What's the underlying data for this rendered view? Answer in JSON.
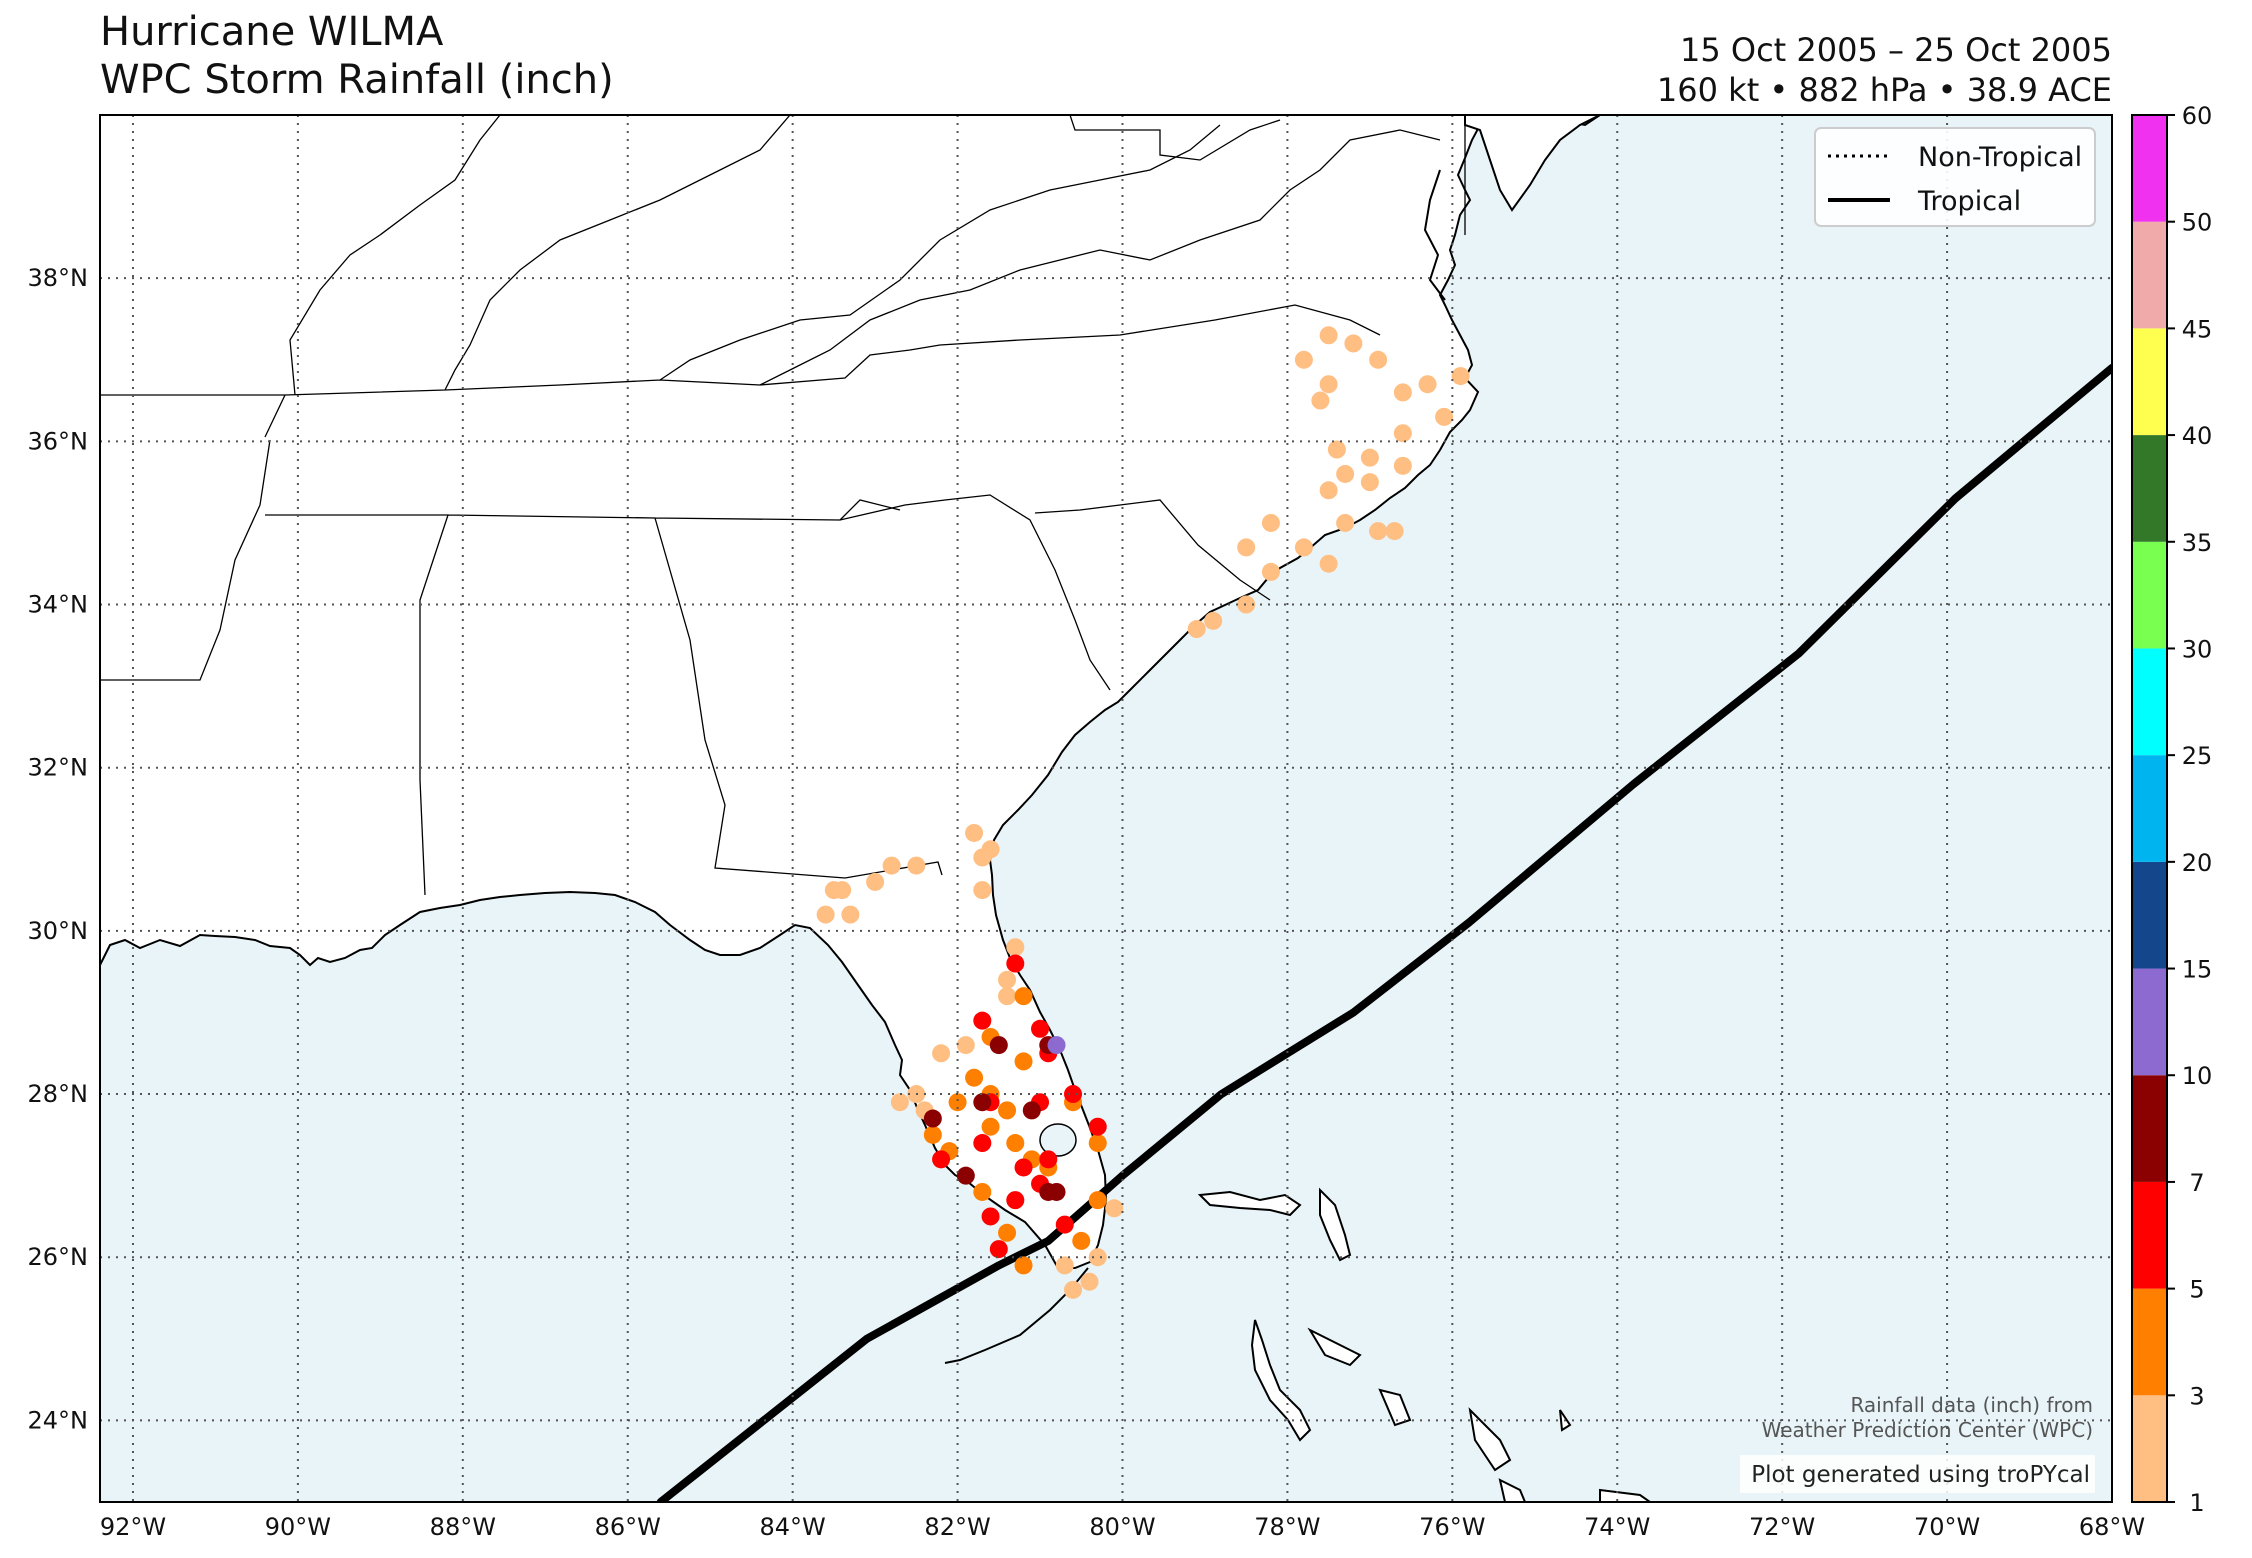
{
  "header": {
    "title_line1": "Hurricane WILMA",
    "title_line2": "WPC Storm Rainfall (inch)",
    "dates": "15 Oct 2005 – 25 Oct 2005",
    "stats": "160 kt • 882 hPa • 38.9 ACE"
  },
  "legend": {
    "non_tropical": "Non-Tropical",
    "tropical": "Tropical"
  },
  "credits": {
    "line1": "Rainfall data (inch) from",
    "line2": "Weather Prediction Center (WPC)",
    "line3": "Plot generated using troPYcal"
  },
  "colors": {
    "ocean": "#e8f4f8",
    "land": "#ffffff",
    "track": "#000000"
  },
  "axes": {
    "lon_labels": [
      "92°W",
      "90°W",
      "88°W",
      "86°W",
      "84°W",
      "82°W",
      "80°W",
      "78°W",
      "76°W",
      "74°W",
      "72°W",
      "70°W",
      "68°W"
    ],
    "lat_labels": [
      "38°N",
      "36°N",
      "34°N",
      "32°N",
      "30°N",
      "28°N",
      "26°N",
      "24°N"
    ]
  },
  "colorbar": {
    "labels": [
      "1",
      "3",
      "5",
      "7",
      "10",
      "15",
      "20",
      "25",
      "30",
      "35",
      "40",
      "45",
      "50",
      "60"
    ],
    "colors": [
      "#ffbe82",
      "#ff7f00",
      "#ff0000",
      "#8b0000",
      "#8c6ad0",
      "#14468c",
      "#00b4f0",
      "#00ffff",
      "#78ff50",
      "#327828",
      "#ffff50",
      "#f0aaaa",
      "#f032f0"
    ]
  },
  "chart_data": {
    "type": "scatter",
    "x_range_lon": [
      -92.4,
      -68
    ],
    "y_range_lat": [
      23,
      40
    ],
    "track": [
      {
        "lon": -85.6,
        "lat": 23.0
      },
      {
        "lon": -83.1,
        "lat": 25.0
      },
      {
        "lon": -81.5,
        "lat": 25.9
      },
      {
        "lon": -80.9,
        "lat": 26.2
      },
      {
        "lon": -80.0,
        "lat": 27.0
      },
      {
        "lon": -78.8,
        "lat": 28.0
      },
      {
        "lon": -77.2,
        "lat": 29.0
      },
      {
        "lon": -75.8,
        "lat": 30.1
      },
      {
        "lon": -73.8,
        "lat": 31.8
      },
      {
        "lon": -71.8,
        "lat": 33.4
      },
      {
        "lon": -69.9,
        "lat": 35.3
      },
      {
        "lon": -68.0,
        "lat": 36.9
      }
    ],
    "rainfall_points": [
      {
        "lon": -77.5,
        "lat": 37.3,
        "in": 2
      },
      {
        "lon": -77.2,
        "lat": 37.2,
        "in": 2
      },
      {
        "lon": -77.8,
        "lat": 37.0,
        "in": 2
      },
      {
        "lon": -76.9,
        "lat": 37.0,
        "in": 2
      },
      {
        "lon": -77.5,
        "lat": 36.7,
        "in": 2
      },
      {
        "lon": -76.6,
        "lat": 36.6,
        "in": 2
      },
      {
        "lon": -76.3,
        "lat": 36.7,
        "in": 2
      },
      {
        "lon": -75.9,
        "lat": 36.8,
        "in": 2
      },
      {
        "lon": -77.6,
        "lat": 36.5,
        "in": 2
      },
      {
        "lon": -76.1,
        "lat": 36.3,
        "in": 2
      },
      {
        "lon": -77.4,
        "lat": 35.9,
        "in": 2
      },
      {
        "lon": -77.0,
        "lat": 35.8,
        "in": 2
      },
      {
        "lon": -76.6,
        "lat": 36.1,
        "in": 2
      },
      {
        "lon": -77.3,
        "lat": 35.6,
        "in": 2
      },
      {
        "lon": -77.5,
        "lat": 35.4,
        "in": 2
      },
      {
        "lon": -77.0,
        "lat": 35.5,
        "in": 2
      },
      {
        "lon": -76.6,
        "lat": 35.7,
        "in": 2
      },
      {
        "lon": -77.3,
        "lat": 35.0,
        "in": 2
      },
      {
        "lon": -76.9,
        "lat": 34.9,
        "in": 2
      },
      {
        "lon": -78.2,
        "lat": 35.0,
        "in": 2
      },
      {
        "lon": -78.5,
        "lat": 34.7,
        "in": 2
      },
      {
        "lon": -77.8,
        "lat": 34.7,
        "in": 2
      },
      {
        "lon": -77.5,
        "lat": 34.5,
        "in": 2
      },
      {
        "lon": -78.2,
        "lat": 34.4,
        "in": 2
      },
      {
        "lon": -76.7,
        "lat": 34.9,
        "in": 2
      },
      {
        "lon": -78.5,
        "lat": 34.0,
        "in": 2
      },
      {
        "lon": -78.9,
        "lat": 33.8,
        "in": 2
      },
      {
        "lon": -79.1,
        "lat": 33.7,
        "in": 2
      },
      {
        "lon": -81.8,
        "lat": 31.2,
        "in": 2
      },
      {
        "lon": -81.6,
        "lat": 31.0,
        "in": 2
      },
      {
        "lon": -81.7,
        "lat": 30.9,
        "in": 2
      },
      {
        "lon": -82.5,
        "lat": 30.8,
        "in": 2
      },
      {
        "lon": -82.8,
        "lat": 30.8,
        "in": 2
      },
      {
        "lon": -83.0,
        "lat": 30.6,
        "in": 2
      },
      {
        "lon": -83.4,
        "lat": 30.5,
        "in": 2
      },
      {
        "lon": -83.5,
        "lat": 30.5,
        "in": 2
      },
      {
        "lon": -83.6,
        "lat": 30.2,
        "in": 2
      },
      {
        "lon": -83.3,
        "lat": 30.2,
        "in": 2
      },
      {
        "lon": -81.7,
        "lat": 30.5,
        "in": 2
      },
      {
        "lon": -81.3,
        "lat": 29.8,
        "in": 2
      },
      {
        "lon": -81.4,
        "lat": 29.4,
        "in": 2
      },
      {
        "lon": -81.4,
        "lat": 29.2,
        "in": 2
      },
      {
        "lon": -82.2,
        "lat": 28.5,
        "in": 2
      },
      {
        "lon": -81.9,
        "lat": 28.6,
        "in": 2
      },
      {
        "lon": -82.5,
        "lat": 28.0,
        "in": 2
      },
      {
        "lon": -82.7,
        "lat": 27.9,
        "in": 2
      },
      {
        "lon": -82.4,
        "lat": 27.8,
        "in": 2
      },
      {
        "lon": -80.7,
        "lat": 25.9,
        "in": 2
      },
      {
        "lon": -80.4,
        "lat": 25.7,
        "in": 2
      },
      {
        "lon": -80.6,
        "lat": 25.6,
        "in": 2
      },
      {
        "lon": -80.3,
        "lat": 26.0,
        "in": 2
      },
      {
        "lon": -80.1,
        "lat": 26.6,
        "in": 2
      },
      {
        "lon": -81.6,
        "lat": 28.7,
        "in": 4
      },
      {
        "lon": -81.2,
        "lat": 29.2,
        "in": 4
      },
      {
        "lon": -81.2,
        "lat": 28.4,
        "in": 4
      },
      {
        "lon": -82.0,
        "lat": 27.9,
        "in": 4
      },
      {
        "lon": -81.6,
        "lat": 28.0,
        "in": 4
      },
      {
        "lon": -81.4,
        "lat": 27.8,
        "in": 4
      },
      {
        "lon": -81.6,
        "lat": 27.6,
        "in": 4
      },
      {
        "lon": -82.3,
        "lat": 27.5,
        "in": 4
      },
      {
        "lon": -82.1,
        "lat": 27.3,
        "in": 4
      },
      {
        "lon": -81.3,
        "lat": 27.4,
        "in": 4
      },
      {
        "lon": -81.1,
        "lat": 27.2,
        "in": 4
      },
      {
        "lon": -81.7,
        "lat": 26.8,
        "in": 4
      },
      {
        "lon": -80.9,
        "lat": 27.1,
        "in": 4
      },
      {
        "lon": -80.3,
        "lat": 27.4,
        "in": 4
      },
      {
        "lon": -80.6,
        "lat": 27.9,
        "in": 4
      },
      {
        "lon": -81.4,
        "lat": 26.3,
        "in": 4
      },
      {
        "lon": -81.2,
        "lat": 25.9,
        "in": 4
      },
      {
        "lon": -80.5,
        "lat": 26.2,
        "in": 4
      },
      {
        "lon": -80.3,
        "lat": 26.7,
        "in": 4
      },
      {
        "lon": -81.8,
        "lat": 28.2,
        "in": 4
      },
      {
        "lon": -81.3,
        "lat": 29.6,
        "in": 6
      },
      {
        "lon": -81.7,
        "lat": 28.9,
        "in": 6
      },
      {
        "lon": -81.0,
        "lat": 28.8,
        "in": 6
      },
      {
        "lon": -80.9,
        "lat": 28.5,
        "in": 6
      },
      {
        "lon": -80.6,
        "lat": 28.0,
        "in": 6
      },
      {
        "lon": -81.6,
        "lat": 27.9,
        "in": 6
      },
      {
        "lon": -81.0,
        "lat": 27.9,
        "in": 6
      },
      {
        "lon": -81.7,
        "lat": 27.4,
        "in": 6
      },
      {
        "lon": -82.2,
        "lat": 27.2,
        "in": 6
      },
      {
        "lon": -81.2,
        "lat": 27.1,
        "in": 6
      },
      {
        "lon": -80.9,
        "lat": 27.2,
        "in": 6
      },
      {
        "lon": -81.0,
        "lat": 26.9,
        "in": 6
      },
      {
        "lon": -81.6,
        "lat": 26.5,
        "in": 6
      },
      {
        "lon": -81.5,
        "lat": 26.1,
        "in": 6
      },
      {
        "lon": -80.3,
        "lat": 27.6,
        "in": 6
      },
      {
        "lon": -80.7,
        "lat": 26.4,
        "in": 6
      },
      {
        "lon": -81.3,
        "lat": 26.7,
        "in": 6
      },
      {
        "lon": -81.5,
        "lat": 28.6,
        "in": 8
      },
      {
        "lon": -80.9,
        "lat": 28.6,
        "in": 8
      },
      {
        "lon": -82.3,
        "lat": 27.7,
        "in": 8
      },
      {
        "lon": -81.1,
        "lat": 27.8,
        "in": 8
      },
      {
        "lon": -81.9,
        "lat": 27.0,
        "in": 8
      },
      {
        "lon": -80.9,
        "lat": 26.8,
        "in": 8
      },
      {
        "lon": -80.8,
        "lat": 26.8,
        "in": 8
      },
      {
        "lon": -81.7,
        "lat": 27.9,
        "in": 8
      },
      {
        "lon": -80.8,
        "lat": 28.6,
        "in": 12
      }
    ]
  }
}
